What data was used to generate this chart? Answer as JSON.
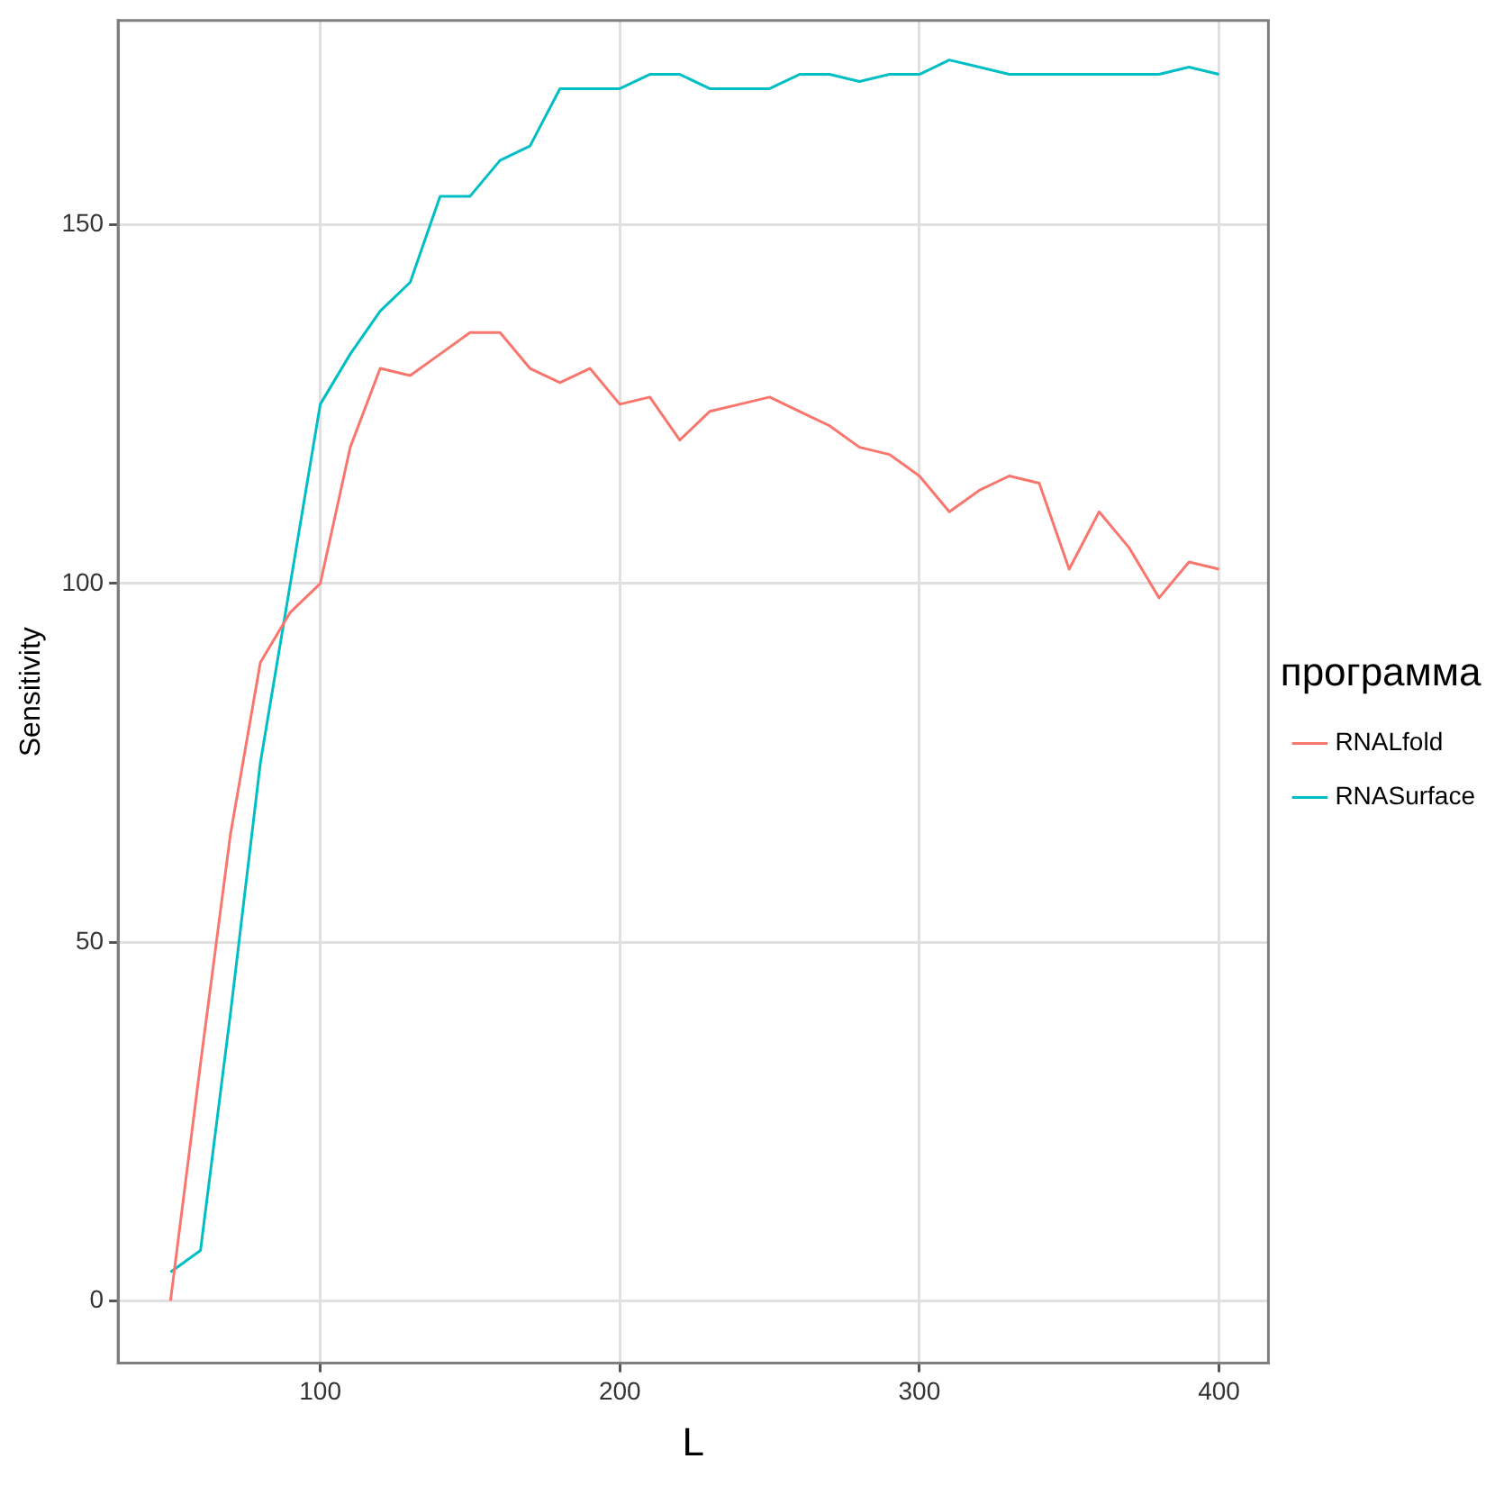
{
  "chart_data": {
    "type": "line",
    "xlabel": "L",
    "ylabel": "Sensitivity",
    "legend_title": "программа",
    "legend": "right",
    "grid": true,
    "marker": "none",
    "line_style": "solid",
    "xlim": [
      32.5,
      416.5
    ],
    "ylim": [
      -8.7,
      178.5
    ],
    "xticks": [
      100,
      200,
      300,
      400
    ],
    "yticks": [
      0,
      50,
      100,
      150
    ],
    "x": [
      50,
      60,
      70,
      80,
      90,
      100,
      110,
      120,
      130,
      140,
      150,
      160,
      170,
      180,
      190,
      200,
      210,
      220,
      230,
      240,
      250,
      260,
      270,
      280,
      290,
      300,
      310,
      320,
      330,
      340,
      350,
      360,
      370,
      380,
      390,
      400
    ],
    "series": [
      {
        "name": "RNALfold",
        "color": "#f8766d",
        "values": [
          0,
          33,
          65,
          89,
          96,
          100,
          119,
          130,
          129,
          132,
          135,
          135,
          130,
          128,
          130,
          125,
          126,
          120,
          124,
          125,
          126,
          124,
          122,
          119,
          118,
          115,
          110,
          113,
          115,
          114,
          102,
          110,
          105,
          98,
          103,
          102
        ]
      },
      {
        "name": "RNASurface",
        "color": "#00bfc4",
        "values": [
          4,
          7,
          40,
          75,
          100,
          125,
          132,
          138,
          142,
          154,
          154,
          159,
          161,
          169,
          169,
          169,
          171,
          171,
          169,
          169,
          169,
          171,
          171,
          170,
          171,
          171,
          173,
          172,
          171,
          171,
          171,
          171,
          171,
          171,
          172,
          171
        ]
      }
    ]
  }
}
